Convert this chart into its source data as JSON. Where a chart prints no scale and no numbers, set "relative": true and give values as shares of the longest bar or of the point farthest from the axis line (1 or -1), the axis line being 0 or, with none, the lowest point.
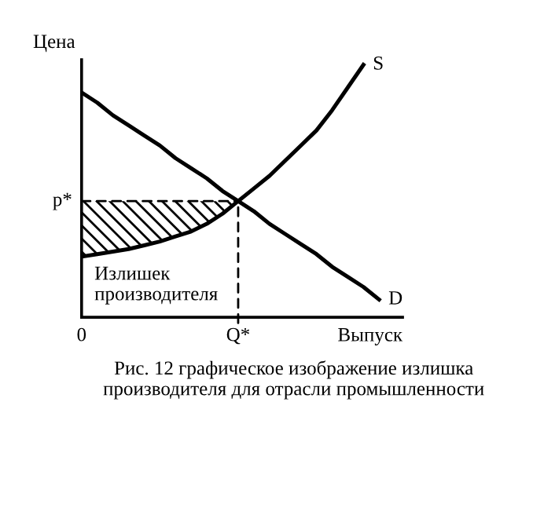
{
  "chart_data": {
    "type": "line",
    "relative": true,
    "xlabel": "Выпуск",
    "ylabel": "Цена",
    "categories": [
      null,
      null,
      null,
      null,
      null,
      null,
      null,
      null,
      null,
      null,
      null,
      null,
      null,
      null,
      null,
      null,
      null,
      null,
      null,
      null,
      null
    ],
    "series": [
      {
        "name": "S",
        "color": "#000000",
        "values": [
          0.24,
          0.25,
          0.26,
          0.27,
          0.285,
          0.3,
          0.32,
          0.34,
          0.37,
          0.41,
          0.46,
          0.51,
          0.56,
          0.62,
          0.68,
          0.74,
          0.82,
          0.91,
          1.0,
          null,
          null
        ]
      },
      {
        "name": "D",
        "color": "#000000",
        "values": [
          0.89,
          0.85,
          0.8,
          0.76,
          0.72,
          0.68,
          0.63,
          0.59,
          0.55,
          0.5,
          0.46,
          0.42,
          0.37,
          0.33,
          0.29,
          0.25,
          0.2,
          0.16,
          0.12,
          0.07,
          null
        ]
      },
      {
        "type": "area",
        "color": "#000000",
        "values": [
          0.46,
          0.46,
          0.46,
          0.46,
          0.46,
          0.46,
          0.46,
          0.46,
          0.46,
          0.46,
          0.46,
          null,
          null,
          null,
          null,
          null,
          null,
          null,
          null,
          null,
          null
        ]
      }
    ],
    "annotations": [
      "p*",
      "Q*",
      "0",
      "Излишек\nпроизводителя",
      "Рис. 12 графическое изображение излишка\nпроизводителя для отрасли промышленности"
    ]
  }
}
